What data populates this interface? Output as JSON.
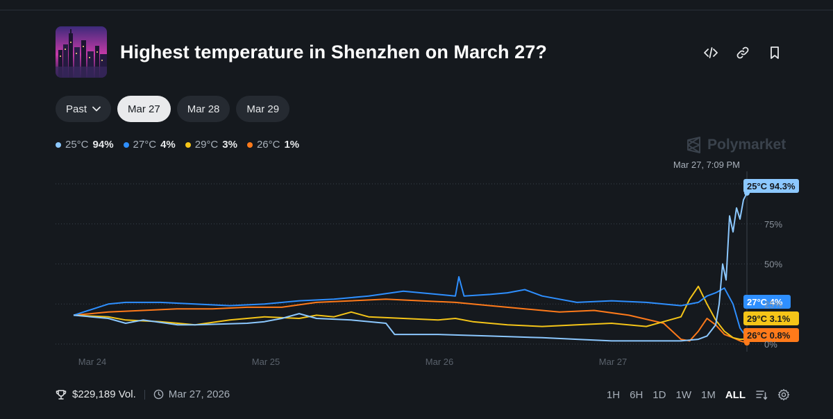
{
  "header": {
    "title": "Highest temperature in Shenzhen on March 27?",
    "icons": [
      "embed-icon",
      "link-icon",
      "bookmark-icon"
    ]
  },
  "tabs": [
    {
      "label": "Past",
      "dropdown": true,
      "active": false
    },
    {
      "label": "Mar 27",
      "active": true
    },
    {
      "label": "Mar 28",
      "active": false
    },
    {
      "label": "Mar 29",
      "active": false
    }
  ],
  "legend": [
    {
      "label": "25°C",
      "pct": "94%",
      "color": "#8cc8ff"
    },
    {
      "label": "27°C",
      "pct": "4%",
      "color": "#2e8fff"
    },
    {
      "label": "29°C",
      "pct": "3%",
      "color": "#f5c518"
    },
    {
      "label": "26°C",
      "pct": "1%",
      "color": "#ff7a1a"
    }
  ],
  "brand": "Polymarket",
  "chart_data": {
    "type": "line",
    "hover_time": "Mar 27, 7:09 PM",
    "x_ticks": [
      "Mar 24",
      "Mar 25",
      "Mar 26",
      "Mar 27"
    ],
    "x_tick_positions": [
      0,
      1,
      2,
      3
    ],
    "x_range": [
      -0.1,
      3.78
    ],
    "y_ticks": [
      "0%",
      "25%",
      "50%",
      "75%"
    ],
    "y_tick_values": [
      0,
      25,
      50,
      75
    ],
    "ylim": [
      0,
      100
    ],
    "grid": true,
    "end_labels": [
      "25°C 94.3%",
      "27°C 4%",
      "29°C 3.1%",
      "26°C 0.8%"
    ],
    "series": [
      {
        "name": "25°C",
        "color": "#8cc8ff",
        "end_label": "25°C 94.3%",
        "x": [
          -0.1,
          0.1,
          0.2,
          0.3,
          0.5,
          0.6,
          0.9,
          1.0,
          1.1,
          1.2,
          1.3,
          1.5,
          1.7,
          1.75,
          2.0,
          2.3,
          2.6,
          2.8,
          3.0,
          3.2,
          3.4,
          3.5,
          3.55,
          3.6,
          3.62,
          3.64,
          3.66,
          3.68,
          3.7,
          3.72,
          3.74,
          3.76,
          3.78
        ],
        "y": [
          18,
          16,
          13,
          15,
          12,
          12,
          13,
          14,
          16,
          19,
          16,
          15,
          13,
          6,
          6,
          5,
          4,
          3,
          2,
          2,
          2,
          3,
          5,
          12,
          25,
          50,
          40,
          80,
          70,
          85,
          78,
          90,
          94.3
        ]
      },
      {
        "name": "27°C",
        "color": "#2e8fff",
        "end_label": "27°C 4%",
        "x": [
          -0.1,
          0.1,
          0.2,
          0.4,
          0.6,
          0.8,
          1.0,
          1.2,
          1.4,
          1.6,
          1.8,
          2.0,
          2.1,
          2.12,
          2.15,
          2.3,
          2.4,
          2.5,
          2.6,
          2.8,
          3.0,
          3.2,
          3.4,
          3.5,
          3.55,
          3.6,
          3.65,
          3.7,
          3.74,
          3.78
        ],
        "y": [
          18,
          25,
          26,
          26,
          25,
          24,
          25,
          27,
          28,
          30,
          33,
          31,
          30,
          42,
          30,
          31,
          32,
          34,
          30,
          26,
          27,
          26,
          24,
          26,
          30,
          32,
          35,
          25,
          10,
          4
        ]
      },
      {
        "name": "29°C",
        "color": "#f5c518",
        "end_label": "29°C 3.1%",
        "x": [
          -0.1,
          0.1,
          0.2,
          0.4,
          0.6,
          0.8,
          1.0,
          1.2,
          1.3,
          1.4,
          1.5,
          1.6,
          1.8,
          2.0,
          2.1,
          2.2,
          2.4,
          2.6,
          2.8,
          3.0,
          3.2,
          3.4,
          3.45,
          3.5,
          3.55,
          3.6,
          3.65,
          3.7,
          3.74,
          3.78
        ],
        "y": [
          18,
          17,
          15,
          14,
          12,
          15,
          17,
          16,
          18,
          17,
          20,
          17,
          16,
          15,
          16,
          14,
          12,
          11,
          12,
          13,
          11,
          17,
          28,
          36,
          25,
          15,
          8,
          4,
          3,
          3.1
        ]
      },
      {
        "name": "26°C",
        "color": "#ff7a1a",
        "end_label": "26°C 0.8%",
        "x": [
          -0.1,
          0.1,
          0.3,
          0.5,
          0.7,
          0.9,
          1.1,
          1.3,
          1.5,
          1.7,
          1.9,
          2.1,
          2.3,
          2.5,
          2.7,
          2.9,
          3.1,
          3.3,
          3.4,
          3.45,
          3.5,
          3.55,
          3.6,
          3.65,
          3.7,
          3.74,
          3.78
        ],
        "y": [
          18,
          20,
          21,
          22,
          22,
          23,
          23,
          26,
          27,
          28,
          27,
          26,
          24,
          22,
          20,
          21,
          18,
          13,
          3,
          2,
          8,
          16,
          12,
          6,
          4,
          2,
          0.8
        ]
      }
    ]
  },
  "footer": {
    "volume": "$229,189 Vol.",
    "date": "Mar 27, 2026"
  },
  "ranges": [
    {
      "label": "1H",
      "active": false
    },
    {
      "label": "6H",
      "active": false
    },
    {
      "label": "1D",
      "active": false
    },
    {
      "label": "1W",
      "active": false
    },
    {
      "label": "1M",
      "active": false
    },
    {
      "label": "ALL",
      "active": true
    }
  ]
}
